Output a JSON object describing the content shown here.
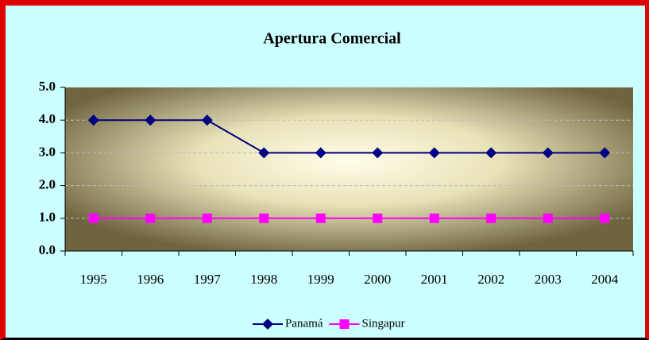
{
  "chart_data": {
    "type": "line",
    "title": "Apertura Comercial",
    "categories": [
      "1995",
      "1996",
      "1997",
      "1998",
      "1999",
      "2000",
      "2001",
      "2002",
      "2003",
      "2004"
    ],
    "series": [
      {
        "name": "Panamá",
        "color": "#000080",
        "values": [
          4,
          4,
          4,
          3,
          3,
          3,
          3,
          3,
          3,
          3
        ]
      },
      {
        "name": "Singapur",
        "color": "#ff00ff",
        "values": [
          1,
          1,
          1,
          1,
          1,
          1,
          1,
          1,
          1,
          1
        ]
      }
    ],
    "ylim": [
      0,
      5
    ],
    "yticks": [
      {
        "value": 0,
        "label": "0.0"
      },
      {
        "value": 1,
        "label": "1.0"
      },
      {
        "value": 2,
        "label": "2.0"
      },
      {
        "value": 3,
        "label": "3.0"
      },
      {
        "value": 4,
        "label": "4.0"
      },
      {
        "value": 5,
        "label": "5.0"
      }
    ],
    "grid": true,
    "legend": "bottom"
  }
}
